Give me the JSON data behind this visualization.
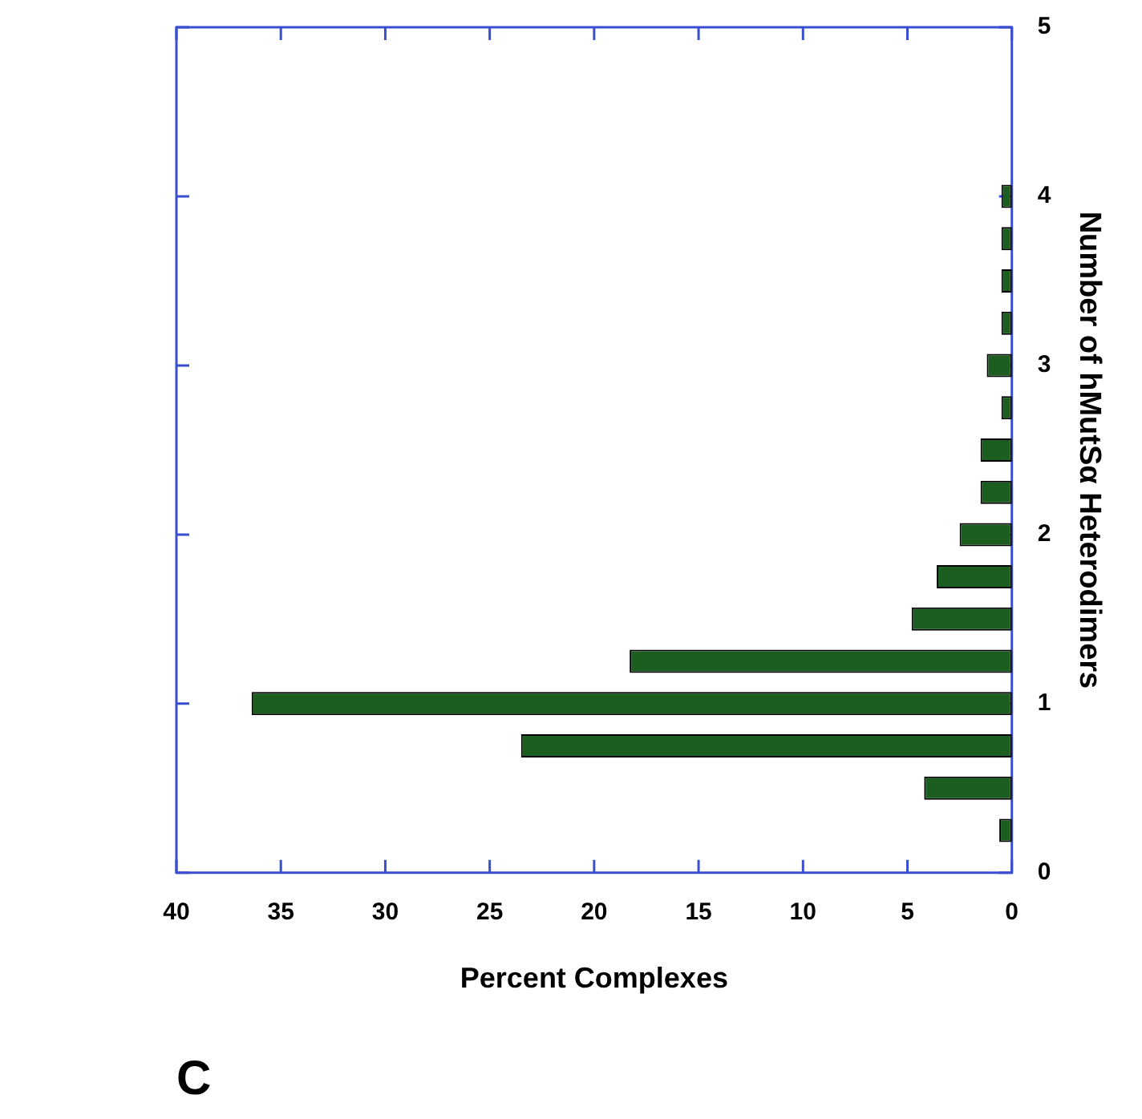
{
  "chart_data": {
    "type": "bar",
    "orientation": "horizontal",
    "title": "C",
    "xlabel": "Percent Complexes",
    "ylabel": "Number of hMutSα Heterodimers",
    "x": [
      0.25,
      0.5,
      0.75,
      1,
      1.25,
      1.5,
      1.75,
      2,
      2.25,
      2.5,
      2.75,
      3,
      3.25,
      3.5,
      3.75,
      4
    ],
    "values": [
      0.6,
      4.2,
      23.5,
      36.4,
      18.3,
      4.8,
      3.6,
      2.5,
      1.5,
      1.5,
      0.5,
      1.2,
      0.5,
      0.5,
      0.5,
      0.5
    ],
    "color": "#1b5e20",
    "xlim": [
      40,
      0
    ],
    "xticks": [
      0,
      5,
      10,
      15,
      20,
      25,
      30,
      35,
      40
    ],
    "ylim": [
      0,
      5
    ],
    "yticks": [
      0,
      1,
      2,
      3,
      4,
      5
    ]
  }
}
